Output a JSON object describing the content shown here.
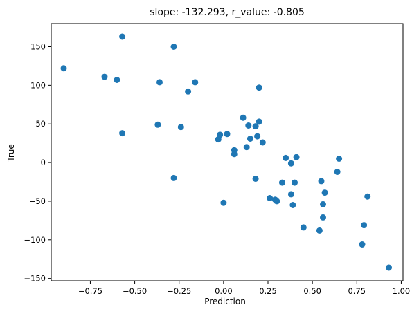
{
  "chart_data": {
    "type": "scatter",
    "title": "slope: -132.293, r_value: -0.805",
    "xlabel": "Prediction",
    "ylabel": "True",
    "xlim": [
      -0.97,
      1.01
    ],
    "ylim": [
      -153,
      180
    ],
    "xticks": [
      -0.75,
      -0.5,
      -0.25,
      0.0,
      0.25,
      0.5,
      0.75,
      1.0
    ],
    "xtick_labels": [
      "−0.75",
      "−0.50",
      "−0.25",
      "0.00",
      "0.25",
      "0.50",
      "0.75",
      "1.00"
    ],
    "yticks": [
      -150,
      -100,
      -50,
      0,
      50,
      100,
      150
    ],
    "ytick_labels": [
      "−150",
      "−100",
      "−50",
      "0",
      "50",
      "100",
      "150"
    ],
    "grid": false,
    "marker_color": "#1f77b4",
    "points": [
      {
        "x": -0.9,
        "y": 122
      },
      {
        "x": -0.67,
        "y": 111
      },
      {
        "x": -0.6,
        "y": 107
      },
      {
        "x": -0.57,
        "y": 163
      },
      {
        "x": -0.57,
        "y": 38
      },
      {
        "x": -0.36,
        "y": 104
      },
      {
        "x": -0.37,
        "y": 49
      },
      {
        "x": -0.28,
        "y": 150
      },
      {
        "x": -0.28,
        "y": -20
      },
      {
        "x": -0.24,
        "y": 46
      },
      {
        "x": -0.2,
        "y": 92
      },
      {
        "x": -0.16,
        "y": 104
      },
      {
        "x": -0.03,
        "y": 30
      },
      {
        "x": -0.02,
        "y": 36
      },
      {
        "x": 0.0,
        "y": -52
      },
      {
        "x": 0.02,
        "y": 37
      },
      {
        "x": 0.06,
        "y": 16
      },
      {
        "x": 0.06,
        "y": 11
      },
      {
        "x": 0.11,
        "y": 58
      },
      {
        "x": 0.13,
        "y": 20
      },
      {
        "x": 0.14,
        "y": 48
      },
      {
        "x": 0.15,
        "y": 31
      },
      {
        "x": 0.18,
        "y": 47
      },
      {
        "x": 0.18,
        "y": -21
      },
      {
        "x": 0.19,
        "y": 34
      },
      {
        "x": 0.2,
        "y": 53
      },
      {
        "x": 0.2,
        "y": 97
      },
      {
        "x": 0.22,
        "y": 26
      },
      {
        "x": 0.26,
        "y": -46
      },
      {
        "x": 0.29,
        "y": -48
      },
      {
        "x": 0.3,
        "y": -50
      },
      {
        "x": 0.33,
        "y": -26
      },
      {
        "x": 0.35,
        "y": 6
      },
      {
        "x": 0.38,
        "y": -1
      },
      {
        "x": 0.38,
        "y": -41
      },
      {
        "x": 0.39,
        "y": -55
      },
      {
        "x": 0.4,
        "y": -26
      },
      {
        "x": 0.41,
        "y": 7
      },
      {
        "x": 0.45,
        "y": -84
      },
      {
        "x": 0.54,
        "y": -88
      },
      {
        "x": 0.55,
        "y": -24
      },
      {
        "x": 0.56,
        "y": -54
      },
      {
        "x": 0.56,
        "y": -71
      },
      {
        "x": 0.57,
        "y": -39
      },
      {
        "x": 0.64,
        "y": -12
      },
      {
        "x": 0.65,
        "y": 5
      },
      {
        "x": 0.78,
        "y": -106
      },
      {
        "x": 0.79,
        "y": -81
      },
      {
        "x": 0.81,
        "y": -44
      },
      {
        "x": 0.93,
        "y": -136
      }
    ]
  }
}
